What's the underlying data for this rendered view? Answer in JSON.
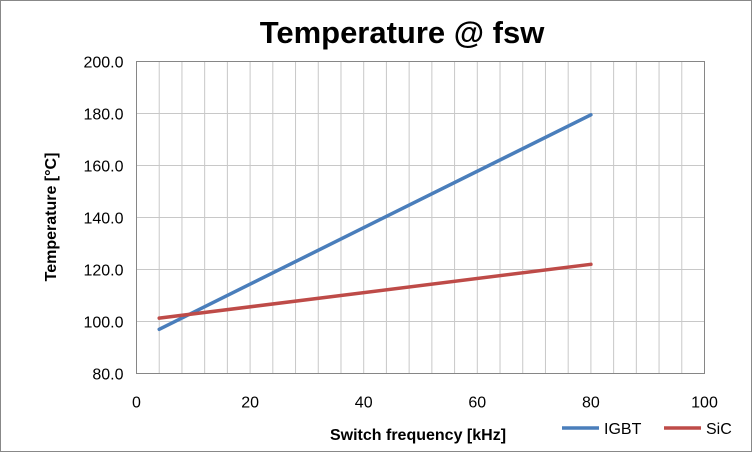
{
  "chart_data": {
    "type": "line",
    "title": "Temperature @ fsw",
    "xlabel": "Switch frequency [kHz]",
    "ylabel": "Temperature [°C]",
    "xlim": [
      0,
      100
    ],
    "ylim": [
      80,
      200
    ],
    "x_ticks": [
      "0",
      "20",
      "40",
      "60",
      "80",
      "100"
    ],
    "y_ticks": [
      "80.0",
      "100.0",
      "120.0",
      "140.0",
      "160.0",
      "180.0",
      "200.0"
    ],
    "grid": true,
    "legend_position": "bottom-right",
    "series": [
      {
        "name": "IGBT",
        "color": "#4a7ebb",
        "x": [
          4,
          80
        ],
        "y": [
          97.0,
          179.5
        ]
      },
      {
        "name": "SiC",
        "color": "#be4b48",
        "x": [
          4,
          80
        ],
        "y": [
          101.3,
          122.0
        ]
      }
    ]
  }
}
